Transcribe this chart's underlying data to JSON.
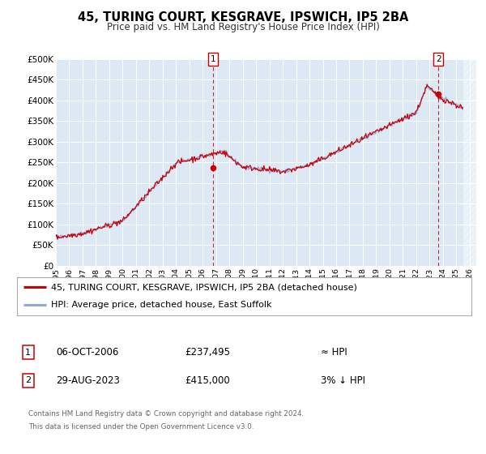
{
  "title": "45, TURING COURT, KESGRAVE, IPSWICH, IP5 2BA",
  "subtitle": "Price paid vs. HM Land Registry's House Price Index (HPI)",
  "legend_line1": "45, TURING COURT, KESGRAVE, IPSWICH, IP5 2BA (detached house)",
  "legend_line2": "HPI: Average price, detached house, East Suffolk",
  "footer1": "Contains HM Land Registry data © Crown copyright and database right 2024.",
  "footer2": "This data is licensed under the Open Government Licence v3.0.",
  "annotation1_date": "06-OCT-2006",
  "annotation1_price": "£237,495",
  "annotation1_hpi": "≈ HPI",
  "annotation2_date": "29-AUG-2023",
  "annotation2_price": "£415,000",
  "annotation2_hpi": "3% ↓ HPI",
  "bg_color": "#dce9f5",
  "line_color": "#cc0000",
  "hpi_line_color": "#88aadd",
  "vline_color": "#cc0000",
  "ylim": [
    0,
    500000
  ],
  "yticks": [
    0,
    50000,
    100000,
    150000,
    200000,
    250000,
    300000,
    350000,
    400000,
    450000,
    500000
  ],
  "ytick_labels": [
    "£0",
    "£50K",
    "£100K",
    "£150K",
    "£200K",
    "£250K",
    "£300K",
    "£350K",
    "£400K",
    "£450K",
    "£500K"
  ],
  "xmin": 1995.0,
  "xmax": 2026.5,
  "sale1_x": 2006.77,
  "sale1_y": 237495,
  "sale2_x": 2023.66,
  "sale2_y": 415000
}
